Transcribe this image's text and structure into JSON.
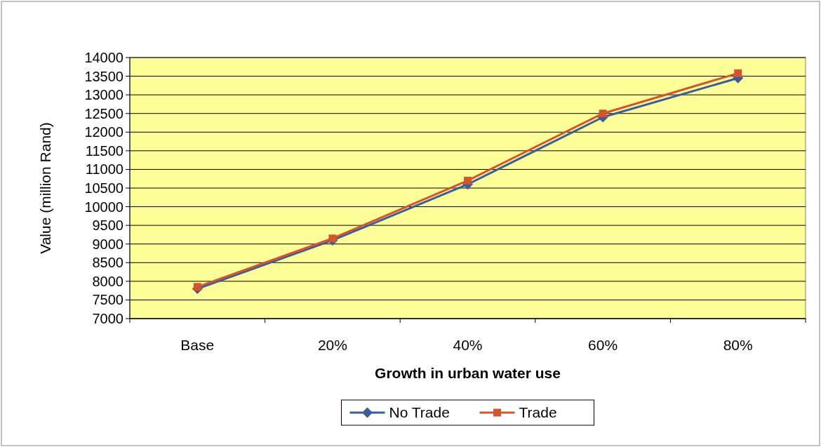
{
  "chart_data": {
    "type": "line",
    "xlabel": "Growth in urban water use",
    "ylabel": "Value (million Rand)",
    "categories": [
      "Base",
      "20%",
      "40%",
      "60%",
      "80%"
    ],
    "series": [
      {
        "name": "No Trade",
        "color": "#3c5c9c",
        "marker": "diamond",
        "values": [
          7800,
          9100,
          10600,
          12400,
          13450
        ]
      },
      {
        "name": "Trade",
        "color": "#d2552e",
        "marker": "square",
        "values": [
          7850,
          9150,
          10700,
          12500,
          13580
        ]
      }
    ],
    "ylim": [
      7000,
      14000
    ],
    "yticks": [
      7000,
      7500,
      8000,
      8500,
      9000,
      9500,
      10000,
      10500,
      11000,
      11500,
      12000,
      12500,
      13000,
      13500,
      14000
    ],
    "grid": "y",
    "legend": "bottom"
  }
}
